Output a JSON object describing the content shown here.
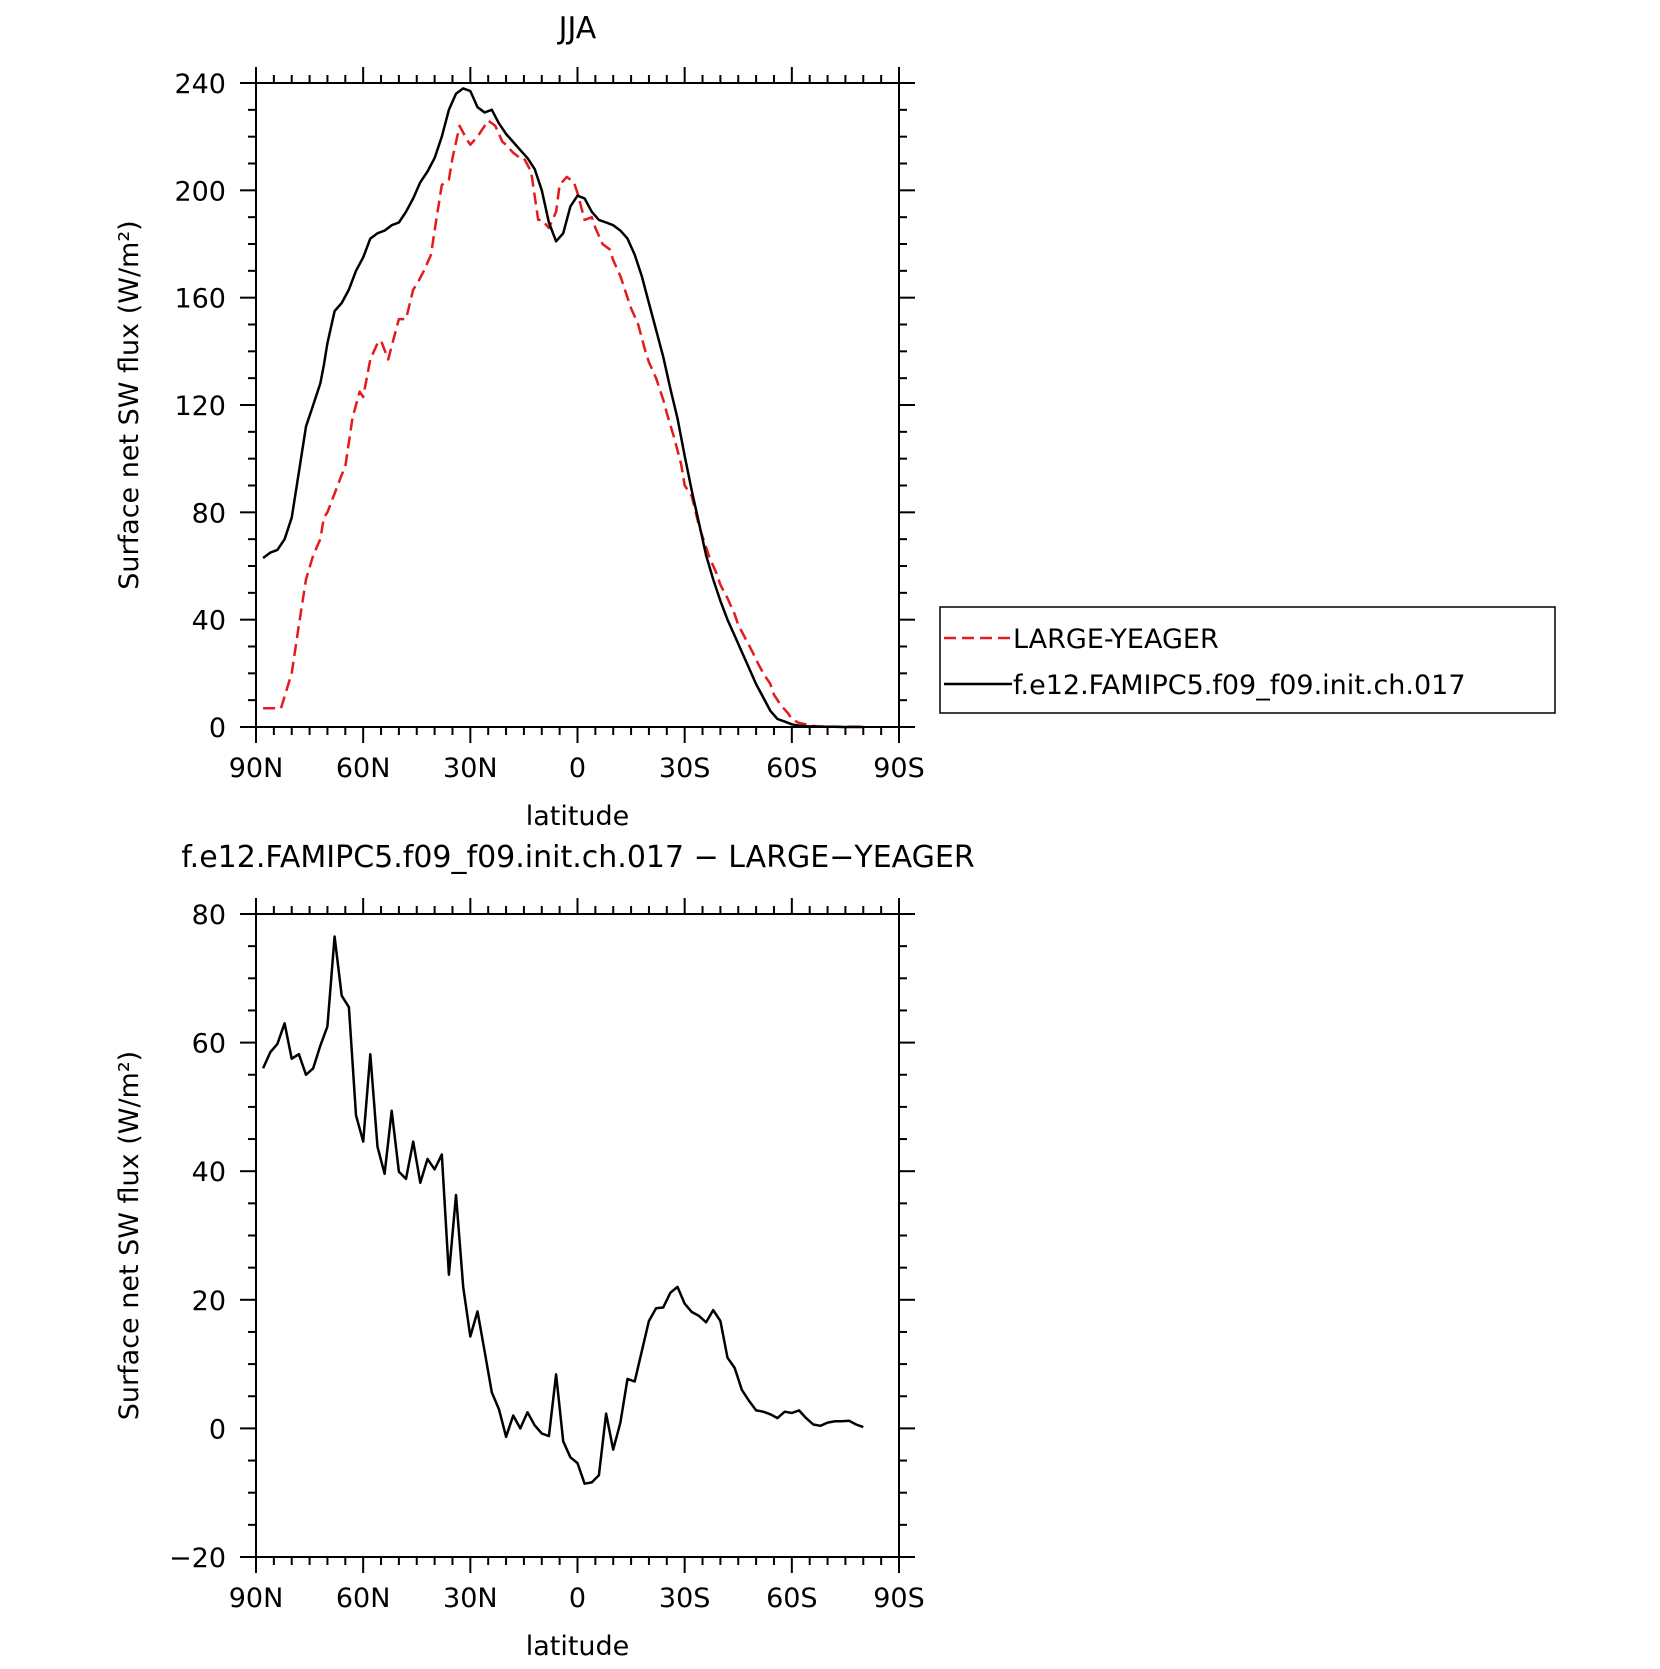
{
  "chart_data": [
    {
      "type": "line",
      "title": "JJA",
      "xlabel": "latitude",
      "ylabel": "Surface net SW flux (W/m²)",
      "xlim": [
        90,
        -90
      ],
      "ylim": [
        0,
        240
      ],
      "x_ticks": [
        90,
        60,
        30,
        0,
        -30,
        -60,
        -90
      ],
      "x_tick_labels": [
        "90N",
        "60N",
        "30N",
        "0",
        "30S",
        "60S",
        "90S"
      ],
      "y_ticks": [
        0,
        40,
        80,
        120,
        160,
        200,
        240
      ],
      "y_tick_labels": [
        "0",
        "40",
        "80",
        "120",
        "160",
        "200",
        "240"
      ],
      "legend_position": "right",
      "series": [
        {
          "name": "LARGE-YEAGER",
          "color": "#e41a1c",
          "dash": "dashed",
          "x": [
            88,
            84,
            83,
            80,
            78,
            76,
            74,
            72,
            71,
            70,
            68,
            66,
            65,
            63,
            61,
            60,
            58,
            56,
            55,
            53,
            51,
            50,
            48,
            46,
            45,
            43,
            41,
            40,
            38,
            36,
            35,
            33,
            31,
            30,
            28,
            26,
            25,
            23,
            21,
            20,
            18,
            16,
            15,
            13,
            11,
            10,
            8,
            6,
            5,
            3,
            1,
            0,
            -2,
            -4,
            -5,
            -7,
            -9,
            -10,
            -12,
            -14,
            -15,
            -17,
            -19,
            -20,
            -22,
            -24,
            -25,
            -27,
            -29,
            -30,
            -32,
            -34,
            -35,
            -37,
            -39,
            -40,
            -42,
            -44,
            -45,
            -47,
            -49,
            -50,
            -52,
            -54,
            -55,
            -57,
            -59,
            -60,
            -62,
            -64,
            -65,
            -67,
            -69,
            -70,
            -72,
            -74,
            -75,
            -77,
            -79,
            -80
          ],
          "y": [
            7,
            7,
            7,
            20,
            38,
            55,
            64,
            70,
            78,
            80,
            87,
            94,
            97,
            115,
            125,
            123,
            137,
            143,
            144,
            137,
            147,
            152,
            152,
            163,
            165,
            170,
            176,
            185,
            202,
            204,
            212,
            224,
            219,
            217,
            220,
            224,
            226,
            224,
            218,
            217,
            214,
            212,
            212,
            207,
            189,
            189,
            186,
            192,
            202,
            205,
            203,
            199,
            189,
            190,
            186,
            180,
            178,
            174,
            168,
            160,
            156,
            150,
            140,
            136,
            130,
            122,
            117,
            108,
            98,
            90,
            86,
            75,
            71,
            63,
            57,
            53,
            48,
            42,
            38,
            33,
            28,
            25,
            20,
            16,
            12,
            8,
            5,
            3,
            1.5,
            1,
            0.5,
            0.3,
            0.2,
            0.2,
            0.1,
            0.1,
            0.1,
            0.1,
            0.1,
            0
          ]
        },
        {
          "name": "f.e12.FAMIPC5.f09_f09.init.ch.017",
          "color": "#000000",
          "dash": "solid",
          "x": [
            88,
            86,
            84,
            82,
            80,
            78,
            76,
            74,
            72,
            71,
            70,
            68,
            66,
            64,
            62,
            60,
            58,
            56,
            54,
            52,
            50,
            48,
            46,
            44,
            42,
            40,
            38,
            36,
            34,
            32,
            30,
            28,
            26,
            24,
            22,
            20,
            18,
            16,
            14,
            12,
            10,
            8,
            6,
            4,
            2,
            0,
            -2,
            -4,
            -6,
            -8,
            -10,
            -12,
            -14,
            -16,
            -18,
            -20,
            -22,
            -24,
            -26,
            -28,
            -30,
            -32,
            -34,
            -36,
            -38,
            -40,
            -42,
            -44,
            -46,
            -48,
            -50,
            -52,
            -54,
            -56,
            -58,
            -60,
            -62,
            -64,
            -66,
            -68,
            -70,
            -72,
            -74,
            -76,
            -78,
            -80
          ],
          "y": [
            63,
            65,
            66,
            70,
            78,
            95,
            112,
            120,
            128,
            135,
            143,
            155,
            158,
            163,
            170,
            175,
            182,
            184,
            185,
            187,
            188,
            192,
            197,
            203,
            207,
            212,
            220,
            230,
            236,
            238,
            237,
            231,
            229,
            230,
            225,
            221,
            218,
            215,
            212,
            208,
            200,
            188,
            181,
            184,
            194,
            198,
            197,
            192,
            189,
            188,
            187,
            185,
            182,
            176,
            168,
            158,
            148,
            138,
            126,
            115,
            101,
            88,
            76,
            64,
            55,
            47,
            40,
            34,
            28,
            22,
            16,
            11,
            6,
            3,
            2,
            1,
            0.5,
            0.3,
            0.2,
            0.1,
            0.1,
            0.1,
            0,
            0,
            0,
            0
          ]
        }
      ]
    },
    {
      "type": "line",
      "title": "f.e12.FAMIPC5.f09_f09.init.ch.017 − LARGE−YEAGER",
      "xlabel": "latitude",
      "ylabel": "Surface net SW flux (W/m²)",
      "xlim": [
        90,
        -90
      ],
      "ylim": [
        -20,
        80
      ],
      "x_ticks": [
        90,
        60,
        30,
        0,
        -30,
        -60,
        -90
      ],
      "x_tick_labels": [
        "90N",
        "60N",
        "30N",
        "0",
        "30S",
        "60S",
        "90S"
      ],
      "y_ticks": [
        -20,
        0,
        20,
        40,
        60,
        80
      ],
      "y_tick_labels": [
        "−20",
        "0",
        "20",
        "40",
        "60",
        "80"
      ],
      "series": [
        {
          "color": "#000000",
          "dash": "solid",
          "x": [
            88,
            86,
            84,
            82,
            80,
            78,
            76,
            74,
            72,
            70,
            68,
            66,
            64,
            62,
            60,
            58,
            56,
            54,
            52,
            50,
            48,
            46,
            44,
            42,
            40,
            38,
            36,
            34,
            32,
            30,
            28,
            26,
            24,
            22,
            20,
            18,
            16,
            14,
            12,
            10,
            8,
            6,
            4,
            2,
            0,
            -2,
            -4,
            -6,
            -8,
            -10,
            -12,
            -14,
            -16,
            -18,
            -20,
            -22,
            -24,
            -26,
            -28,
            -30,
            -32,
            -34,
            -36,
            -38,
            -40,
            -42,
            -44,
            -46,
            -48,
            -50,
            -52,
            -54,
            -56,
            -58,
            -60,
            -62,
            -64,
            -66,
            -68,
            -70,
            -72,
            -74,
            -76,
            -78,
            -80
          ],
          "y": [
            56,
            58.5,
            59.8,
            63,
            57.5,
            58.2,
            55,
            56,
            59.5,
            62.5,
            76.5,
            67.3,
            65.5,
            48.7,
            44.6,
            58.2,
            43.8,
            39.6,
            49.4,
            39.9,
            38.8,
            44.6,
            38.2,
            41.9,
            40.3,
            42.6,
            23.9,
            36.3,
            22,
            14.3,
            18.2,
            12,
            5.6,
            3,
            -1.3,
            2,
            0,
            2.5,
            0.5,
            -0.8,
            -1.2,
            8.4,
            -2,
            -4.5,
            -5.4,
            -8.6,
            -8.4,
            -7.3,
            2.3,
            -3.3,
            0.9,
            7.7,
            7.3,
            12,
            16.7,
            18.7,
            18.8,
            21.1,
            22,
            19.4,
            18.1,
            17.5,
            16.5,
            18.4,
            16.7,
            11,
            9.4,
            6,
            4.3,
            2.8,
            2.6,
            2.2,
            1.6,
            2.6,
            2.4,
            2.8,
            1.6,
            0.6,
            0.4,
            0.9,
            1.1,
            1.1,
            1.2,
            0.6,
            0.2
          ]
        }
      ]
    }
  ]
}
